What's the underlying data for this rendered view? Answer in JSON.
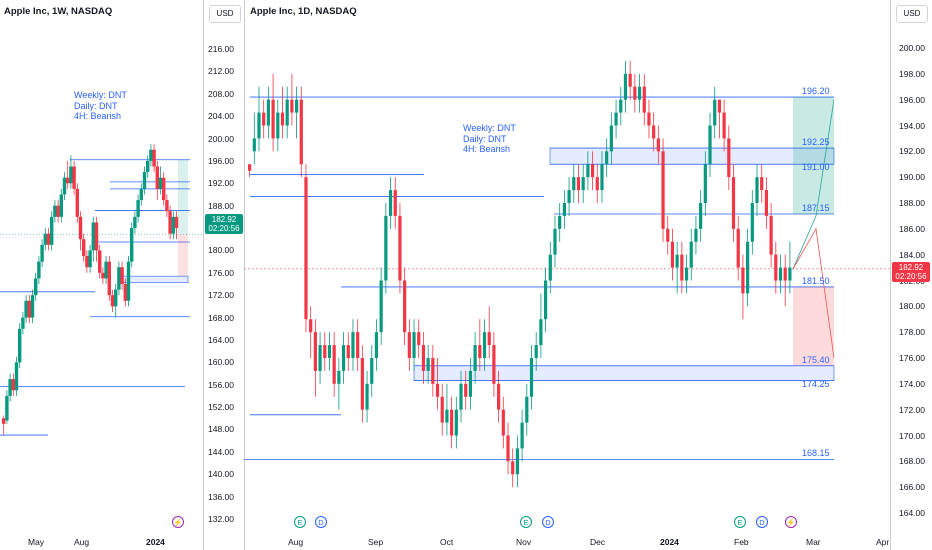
{
  "left_chart": {
    "header": "Apple Inc, 1W, NASDAQ",
    "notes": [
      "Weekly: DNT",
      "Daily: DNT",
      "4H: Bearish"
    ],
    "x_labels": [
      "May",
      "Aug",
      "2024"
    ],
    "candles": [
      [
        150,
        149,
        150.5,
        147
      ],
      [
        149.6,
        154,
        155,
        149
      ],
      [
        154,
        157,
        158,
        153
      ],
      [
        157,
        155,
        158,
        154
      ],
      [
        155,
        160,
        161,
        154
      ],
      [
        160,
        166,
        167,
        159
      ],
      [
        166,
        168,
        169,
        165
      ],
      [
        168,
        171,
        172,
        167
      ],
      [
        171,
        168,
        172,
        167
      ],
      [
        168,
        172,
        173,
        167
      ],
      [
        172,
        175,
        176,
        171
      ],
      [
        175,
        178,
        179,
        174
      ],
      [
        178,
        181,
        182,
        177
      ],
      [
        181,
        183,
        184,
        180
      ],
      [
        183,
        181,
        184,
        180
      ],
      [
        181,
        186,
        187,
        180
      ],
      [
        186,
        188,
        189,
        185
      ],
      [
        188,
        186,
        189,
        185
      ],
      [
        186,
        190,
        191,
        185
      ],
      [
        190,
        193,
        194,
        189
      ],
      [
        193,
        192,
        196,
        191
      ],
      [
        192,
        195,
        197,
        191
      ],
      [
        195,
        191,
        196,
        190
      ],
      [
        191,
        186,
        192,
        185
      ],
      [
        186,
        182,
        187,
        180
      ],
      [
        182,
        179,
        183,
        178
      ],
      [
        179,
        177,
        180,
        176
      ],
      [
        177,
        180,
        181,
        176
      ],
      [
        180,
        185,
        186,
        178
      ],
      [
        185,
        180,
        186,
        178
      ],
      [
        180,
        176,
        181,
        175
      ],
      [
        176,
        175,
        177,
        174
      ],
      [
        175,
        178,
        179,
        174
      ],
      [
        178,
        172,
        179,
        171
      ],
      [
        172,
        170,
        173,
        169
      ],
      [
        170,
        173,
        174,
        168
      ],
      [
        173,
        177,
        178,
        172
      ],
      [
        177,
        174,
        178,
        173
      ],
      [
        174,
        171,
        175,
        170
      ],
      [
        171,
        178,
        179,
        170
      ],
      [
        178,
        184,
        185,
        177
      ],
      [
        184,
        186,
        187,
        183
      ],
      [
        186,
        189,
        190,
        185
      ],
      [
        189,
        191,
        192,
        188
      ],
      [
        191,
        194,
        195,
        190
      ],
      [
        194,
        196,
        197,
        193
      ],
      [
        196,
        198,
        199,
        195
      ],
      [
        198,
        195,
        199,
        194
      ],
      [
        195,
        191,
        196,
        189
      ],
      [
        191,
        193,
        195,
        190
      ],
      [
        193,
        189,
        194,
        188
      ],
      [
        189,
        187,
        190,
        186
      ],
      [
        187,
        183,
        188,
        182
      ],
      [
        183,
        186,
        187,
        182
      ],
      [
        186,
        184,
        187,
        182
      ]
    ],
    "levels": [
      196.2,
      192.25,
      191.0,
      187.15,
      181.5,
      175.4,
      174.25,
      172.6,
      168.15,
      155.7,
      147.0
    ],
    "zone": [
      175.4,
      174.25
    ],
    "ticks": [
      "216.00",
      "212.00",
      "208.00",
      "204.00",
      "200.00",
      "196.00",
      "192.00",
      "188.00",
      "184.00",
      "180.00",
      "176.00",
      "172.00",
      "168.00",
      "164.00",
      "160.00",
      "156.00",
      "152.00",
      "148.00",
      "144.00",
      "140.00",
      "136.00",
      "132.00"
    ],
    "price_badge": {
      "price": "182.92",
      "timer": "02:20:56"
    }
  },
  "right_chart": {
    "header": "Apple Inc, 1D, NASDAQ",
    "notes": [
      "Weekly: DNT",
      "Daily: DNT",
      "4H: Bearish"
    ],
    "x_labels": [
      "Aug",
      "Sep",
      "Oct",
      "Nov",
      "Dec",
      "2024",
      "Feb",
      "Mar",
      "Apr"
    ],
    "levels": [
      {
        "price": 196.2,
        "label": "196.20"
      },
      {
        "price": 192.25,
        "label": "192.25"
      },
      {
        "price": 191.0,
        "label": "191.00"
      },
      {
        "price": 187.15,
        "label": "187.15"
      },
      {
        "price": 181.5,
        "label": "181.50"
      },
      {
        "price": 175.4,
        "label": "175.40"
      },
      {
        "price": 174.25,
        "label": "174.25"
      },
      {
        "price": 168.15,
        "label": "168.15"
      }
    ],
    "ticks": [
      "200.00",
      "198.00",
      "196.00",
      "194.00",
      "192.00",
      "190.00",
      "188.00",
      "186.00",
      "184.00",
      "182.00",
      "180.00",
      "178.00",
      "176.00",
      "174.00",
      "172.00",
      "170.00",
      "168.00",
      "166.00",
      "164.00"
    ],
    "price_badge": {
      "price": "182.92",
      "timer": "02:20:56"
    },
    "events": [
      {
        "label": "E",
        "color": "#089981"
      },
      {
        "label": "D",
        "color": "#2962ff"
      },
      {
        "label": "E",
        "color": "#089981"
      },
      {
        "label": "D",
        "color": "#2962ff"
      },
      {
        "label": "E",
        "color": "#089981"
      },
      {
        "label": "D",
        "color": "#2962ff"
      },
      {
        "label": "⚡",
        "color": "#9c27b0"
      }
    ],
    "candles": [
      [
        191,
        190.5,
        191,
        190
      ],
      [
        192,
        193,
        195,
        191
      ],
      [
        193,
        195,
        197,
        192
      ],
      [
        195,
        194,
        196,
        193
      ],
      [
        194,
        196,
        197,
        193
      ],
      [
        196,
        193,
        198,
        192
      ],
      [
        193,
        195,
        196,
        192
      ],
      [
        195,
        194,
        197,
        193
      ],
      [
        194,
        196,
        197,
        193
      ],
      [
        196,
        195,
        198,
        194
      ],
      [
        195,
        196,
        197,
        193
      ],
      [
        196,
        191,
        197,
        190
      ],
      [
        190,
        179,
        191,
        178
      ],
      [
        179,
        178,
        180,
        176
      ],
      [
        178,
        175,
        179,
        173
      ],
      [
        175,
        177,
        178,
        174
      ],
      [
        177,
        176,
        178,
        175
      ],
      [
        176,
        177,
        178,
        175
      ],
      [
        177,
        174,
        178,
        173
      ],
      [
        174,
        175,
        176,
        172
      ],
      [
        175,
        177,
        178,
        174
      ],
      [
        177,
        176,
        178,
        175
      ],
      [
        176,
        178,
        179,
        175
      ],
      [
        178,
        176,
        179,
        175
      ],
      [
        176,
        172,
        177,
        171
      ],
      [
        172,
        174,
        175,
        171
      ],
      [
        174,
        176,
        177,
        173
      ],
      [
        176,
        178,
        179,
        175
      ],
      [
        178,
        182,
        183,
        177
      ],
      [
        182,
        187,
        188,
        181
      ],
      [
        187,
        189,
        190,
        186
      ],
      [
        189,
        187,
        190,
        186
      ],
      [
        187,
        182,
        188,
        181
      ],
      [
        182,
        178,
        183,
        177
      ],
      [
        178,
        176,
        179,
        175
      ],
      [
        176,
        178,
        179,
        175
      ],
      [
        178,
        177,
        179,
        176
      ],
      [
        177,
        175,
        178,
        174
      ],
      [
        175,
        176,
        177,
        174
      ],
      [
        176,
        174,
        177,
        173
      ],
      [
        174,
        173,
        176,
        172
      ],
      [
        173,
        171,
        174,
        170
      ],
      [
        171,
        172,
        174,
        170
      ],
      [
        172,
        170,
        173,
        169
      ],
      [
        170,
        172,
        173,
        169
      ],
      [
        172,
        174,
        175,
        171
      ],
      [
        174,
        173,
        175,
        172
      ],
      [
        173,
        175,
        176,
        172
      ],
      [
        175,
        177,
        178,
        174
      ],
      [
        177,
        176,
        179,
        175
      ],
      [
        176,
        178,
        179,
        175
      ],
      [
        178,
        177,
        180,
        176
      ],
      [
        177,
        174,
        178,
        173
      ],
      [
        174,
        172,
        175,
        171
      ],
      [
        172,
        170,
        173,
        169
      ],
      [
        170,
        168,
        171,
        167
      ],
      [
        168,
        167,
        169,
        166
      ],
      [
        167,
        169,
        170,
        166
      ],
      [
        169,
        171,
        172,
        168
      ],
      [
        171,
        173,
        174,
        170
      ],
      [
        173,
        176,
        177,
        172
      ],
      [
        176,
        177,
        178,
        175
      ],
      [
        177,
        179,
        181,
        176
      ],
      [
        179,
        182,
        183,
        178
      ],
      [
        182,
        184,
        185,
        181
      ],
      [
        184,
        186,
        187,
        183
      ],
      [
        186,
        187,
        188,
        185
      ],
      [
        187,
        188,
        189,
        186
      ],
      [
        188,
        189,
        190,
        187
      ],
      [
        189,
        190,
        191,
        188
      ],
      [
        190,
        189,
        191,
        188
      ],
      [
        189,
        190,
        191,
        188
      ],
      [
        190,
        191,
        192,
        189
      ],
      [
        191,
        190,
        192,
        189
      ],
      [
        190,
        189,
        191,
        188
      ],
      [
        189,
        191,
        192,
        188
      ],
      [
        191,
        192,
        193,
        190
      ],
      [
        192,
        194,
        195,
        191
      ],
      [
        194,
        195,
        196,
        193
      ],
      [
        195,
        196,
        197,
        194
      ],
      [
        196,
        198,
        199,
        195
      ],
      [
        198,
        197,
        199,
        196
      ],
      [
        197,
        196,
        198,
        195
      ],
      [
        196,
        197,
        198,
        195
      ],
      [
        197,
        195,
        198,
        194
      ],
      [
        195,
        194,
        196,
        193
      ],
      [
        194,
        193,
        195,
        192
      ],
      [
        193,
        192,
        194,
        191
      ],
      [
        192,
        186,
        193,
        185
      ],
      [
        186,
        185,
        187,
        184
      ],
      [
        185,
        183,
        186,
        182
      ],
      [
        183,
        184,
        185,
        181
      ],
      [
        184,
        182,
        185,
        181
      ],
      [
        182,
        183,
        184,
        181
      ],
      [
        183,
        185,
        186,
        182
      ],
      [
        185,
        186,
        187,
        184
      ],
      [
        186,
        188,
        189,
        185
      ],
      [
        188,
        191,
        192,
        187
      ],
      [
        191,
        194,
        195,
        190
      ],
      [
        194,
        196,
        197,
        193
      ],
      [
        196,
        195,
        196,
        193
      ],
      [
        195,
        193,
        196,
        192
      ],
      [
        193,
        190,
        194,
        189
      ],
      [
        190,
        186,
        191,
        185
      ],
      [
        186,
        183,
        187,
        182
      ],
      [
        183,
        181,
        184,
        179
      ],
      [
        181,
        185,
        186,
        180
      ],
      [
        185,
        188,
        189,
        184
      ],
      [
        188,
        190,
        191,
        187
      ],
      [
        190,
        189,
        191,
        188
      ],
      [
        189,
        187,
        190,
        186
      ],
      [
        187,
        184,
        188,
        183
      ],
      [
        184,
        182,
        185,
        181
      ],
      [
        182,
        183,
        184,
        181
      ],
      [
        183,
        182,
        184,
        180
      ],
      [
        182,
        183,
        185,
        181
      ]
    ]
  }
}
